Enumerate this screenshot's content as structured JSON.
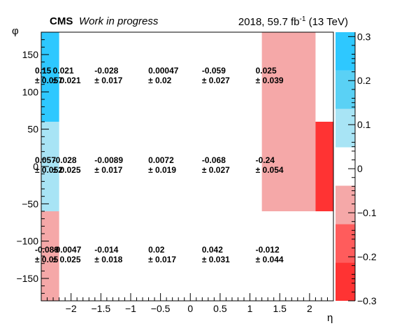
{
  "header": {
    "experiment": "CMS",
    "status": "Work in progress",
    "lumi_prefix": "2018, 59.7 fb",
    "lumi_exp": "-1",
    "lumi_suffix": " (13 TeV)"
  },
  "colors": {
    "axis": "#000000",
    "palette": [
      "#ff3333",
      "#ff5c5c",
      "#f5a8a8",
      "#ffffff",
      "#a8e4f5",
      "#5ad1f5",
      "#2ec8ff"
    ]
  },
  "chart_data": {
    "type": "heatmap",
    "xlabel": "η",
    "ylabel": "φ",
    "xlim": [
      -2.5,
      2.4
    ],
    "ylim": [
      -180,
      180
    ],
    "zlim": [
      -0.3,
      0.31
    ],
    "x_edges": [
      -2.5,
      -2.2,
      -1.5,
      -0.6,
      0.3,
      1.2,
      2.1,
      2.4
    ],
    "y_edges": [
      -180,
      -60,
      60,
      180
    ],
    "x_ticks": [
      -2,
      -1.5,
      -1,
      -0.5,
      0,
      0.5,
      1,
      1.5,
      2
    ],
    "x_tick_labels": [
      "−2",
      "−1.5",
      "−1",
      "−0.5",
      "0",
      "0.5",
      "1",
      "1.5",
      "2"
    ],
    "y_ticks": [
      -150,
      -100,
      -50,
      0,
      50,
      100,
      150
    ],
    "y_tick_labels": [
      "−150",
      "−100",
      "−50",
      "0",
      "50",
      "100",
      "150"
    ],
    "z_ticks": [
      -0.3,
      -0.2,
      -0.1,
      0,
      0.1,
      0.2,
      0.3
    ],
    "z_tick_labels": [
      "−0.3",
      "−0.2",
      "−0.1",
      "0",
      "0.1",
      "0.2",
      "0.3"
    ],
    "cells": [
      {
        "x0": -2.5,
        "x1": -2.2,
        "y0": 60,
        "y1": 180,
        "value": 0.15,
        "label": "0.15",
        "err": "± 0.057"
      },
      {
        "x0": -2.2,
        "x1": -1.5,
        "y0": 60,
        "y1": 180,
        "value": 0.021,
        "label": "0.021",
        "err": "± 0.021"
      },
      {
        "x0": -1.5,
        "x1": -0.6,
        "y0": 60,
        "y1": 180,
        "value": -0.028,
        "label": "-0.028",
        "err": "± 0.017"
      },
      {
        "x0": -0.6,
        "x1": 0.3,
        "y0": 60,
        "y1": 180,
        "value": 0.00047,
        "label": "0.00047",
        "err": "± 0.02"
      },
      {
        "x0": 0.3,
        "x1": 1.2,
        "y0": 60,
        "y1": 180,
        "value": -0.059,
        "label": "-0.059",
        "err": "± 0.027"
      },
      {
        "x0": 1.2,
        "x1": 2.1,
        "y0": 60,
        "y1": 180,
        "value": 0.025,
        "label": "0.025",
        "err": "± 0.039"
      },
      {
        "x0": -2.5,
        "x1": -2.2,
        "y0": -60,
        "y1": 60,
        "value": 0.057,
        "label": "0.057",
        "err": "± 0.052"
      },
      {
        "x0": -2.2,
        "x1": -1.5,
        "y0": -60,
        "y1": 60,
        "value": -0.028,
        "label": "-0.028",
        "err": "± 0.025"
      },
      {
        "x0": -1.5,
        "x1": -0.6,
        "y0": -60,
        "y1": 60,
        "value": -0.0089,
        "label": "-0.0089",
        "err": "± 0.017"
      },
      {
        "x0": -0.6,
        "x1": 0.3,
        "y0": -60,
        "y1": 60,
        "value": 0.0072,
        "label": "0.0072",
        "err": "± 0.019"
      },
      {
        "x0": 0.3,
        "x1": 1.2,
        "y0": -60,
        "y1": 60,
        "value": -0.068,
        "label": "-0.068",
        "err": "± 0.027"
      },
      {
        "x0": 1.2,
        "x1": 2.1,
        "y0": -60,
        "y1": 60,
        "value": -0.24,
        "label": "-0.24",
        "err": "± 0.054"
      },
      {
        "x0": -2.5,
        "x1": -2.2,
        "y0": -180,
        "y1": -60,
        "value": -0.089,
        "label": "-0.089",
        "err": "± 0.05"
      },
      {
        "x0": -2.2,
        "x1": -1.5,
        "y0": -180,
        "y1": -60,
        "value": -0.0047,
        "label": "-0.0047",
        "err": "± 0.025"
      },
      {
        "x0": -1.5,
        "x1": -0.6,
        "y0": -180,
        "y1": -60,
        "value": -0.014,
        "label": "-0.014",
        "err": "± 0.018"
      },
      {
        "x0": -0.6,
        "x1": 0.3,
        "y0": -180,
        "y1": -60,
        "value": 0.02,
        "label": "0.02",
        "err": "± 0.017"
      },
      {
        "x0": 0.3,
        "x1": 1.2,
        "y0": -180,
        "y1": -60,
        "value": 0.042,
        "label": "0.042",
        "err": "± 0.031"
      },
      {
        "x0": 1.2,
        "x1": 2.1,
        "y0": -180,
        "y1": -60,
        "value": -0.012,
        "label": "-0.012",
        "err": "± 0.044"
      }
    ],
    "fill_regions": [
      {
        "x0": -2.5,
        "x1": -2.2,
        "y0": 60,
        "y1": 180,
        "value": 0.3
      },
      {
        "x0": -2.5,
        "x1": -2.2,
        "y0": -60,
        "y1": 60,
        "value": 0.08
      },
      {
        "x0": -2.5,
        "x1": -2.2,
        "y0": -180,
        "y1": -60,
        "value": -0.09
      },
      {
        "x0": 1.2,
        "x1": 2.1,
        "y0": -60,
        "y1": 180,
        "value": -0.09
      },
      {
        "x0": 2.1,
        "x1": 2.4,
        "y0": -60,
        "y1": 60,
        "value": -0.3
      }
    ]
  }
}
